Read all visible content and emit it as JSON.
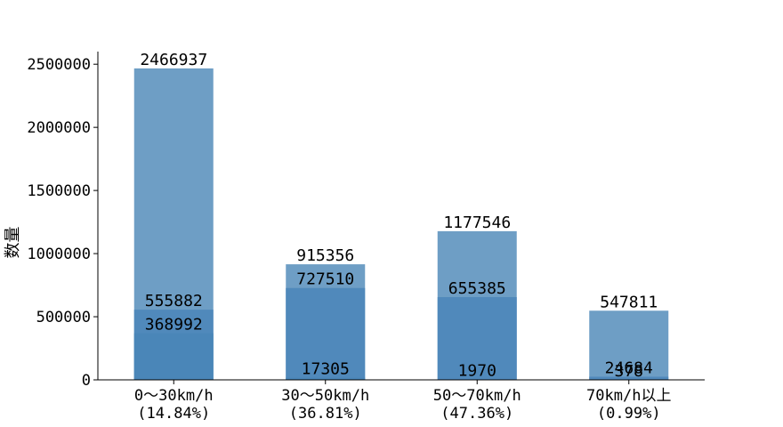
{
  "chart_data": {
    "type": "bar",
    "ylabel": "数量",
    "ylim": [
      0,
      2600000
    ],
    "yticks": [
      0,
      500000,
      1000000,
      1500000,
      2000000,
      2500000
    ],
    "grid": false,
    "categories": [
      [
        "0～30km/h",
        "(14.84%)"
      ],
      [
        "30～50km/h",
        "(36.81%)"
      ],
      [
        "50～70km/h",
        "(47.36%)"
      ],
      [
        "70km/h以上",
        "(0.99%)"
      ]
    ],
    "series": [
      {
        "values": [
          2466937,
          915356,
          1177546,
          547811
        ],
        "color": "#6e9ec5"
      },
      {
        "values": [
          555882,
          727510,
          655385,
          24684
        ],
        "color": "#5089bb"
      },
      {
        "values": [
          368992,
          17305,
          1970,
          378
        ],
        "color": "#4a86b8"
      }
    ]
  }
}
